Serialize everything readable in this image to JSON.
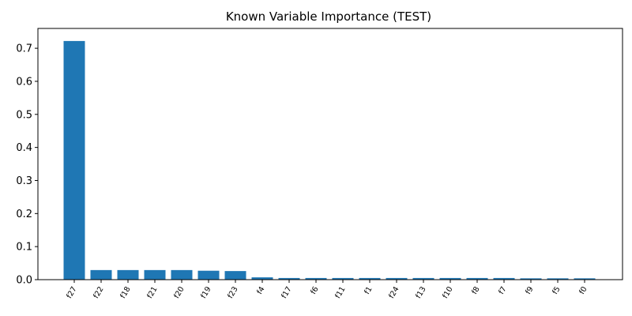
{
  "chart_data": {
    "type": "bar",
    "title": "Known Variable Importance (TEST)",
    "xlabel": "",
    "ylabel": "",
    "categories": [
      "f27",
      "f22",
      "f18",
      "f21",
      "f20",
      "f19",
      "f23",
      "f4",
      "f17",
      "f6",
      "f11",
      "f1",
      "f24",
      "f13",
      "f10",
      "f8",
      "f7",
      "f9",
      "f5",
      "f0"
    ],
    "values": [
      0.722,
      0.029,
      0.029,
      0.029,
      0.029,
      0.027,
      0.026,
      0.007,
      0.005,
      0.005,
      0.005,
      0.005,
      0.005,
      0.005,
      0.005,
      0.005,
      0.005,
      0.004,
      0.004,
      0.004
    ],
    "ylim": [
      0,
      0.76
    ],
    "yticks": [
      0.0,
      0.1,
      0.2,
      0.3,
      0.4,
      0.5,
      0.6,
      0.7
    ],
    "ytick_labels": [
      "0.0",
      "0.1",
      "0.2",
      "0.3",
      "0.4",
      "0.5",
      "0.6",
      "0.7"
    ],
    "bar_color": "#1f77b4",
    "grid": false,
    "legend": "none"
  }
}
